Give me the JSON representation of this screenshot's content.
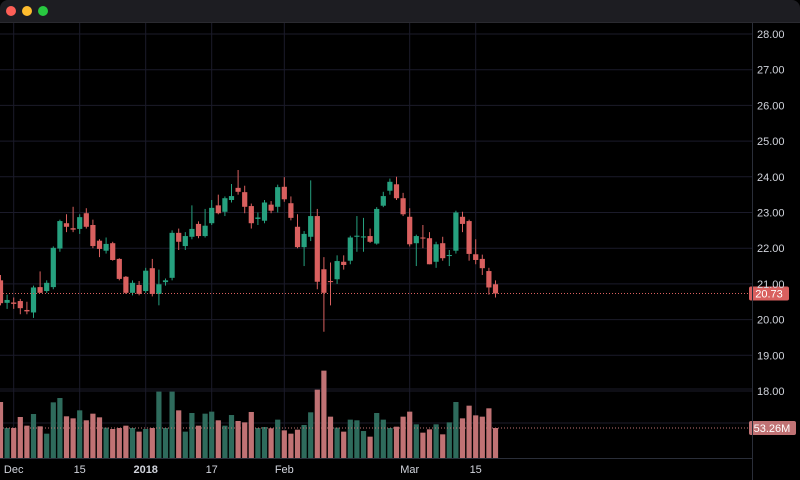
{
  "window": {
    "controls": [
      "close",
      "minimize",
      "maximize"
    ]
  },
  "colors": {
    "background": "#000000",
    "grid": "#1b1b2a",
    "up": "#26a17f",
    "down": "#d9605f",
    "volume_up": "#2e6b5c",
    "volume_down": "#c07274",
    "last_price_badge": "#d9605f",
    "volume_badge": "#c07274"
  },
  "chart_data": {
    "type": "candlestick",
    "price_axis": {
      "ticks": [
        "18.00",
        "19.00",
        "20.00",
        "21.00",
        "22.00",
        "23.00",
        "24.00",
        "25.00",
        "26.00",
        "27.00",
        "28.00"
      ],
      "range": [
        17.0,
        28.4
      ],
      "position": "right"
    },
    "time_axis": {
      "ticks": [
        {
          "label": "Dec",
          "date": "2017-12-01",
          "bold": false
        },
        {
          "label": "15",
          "date": "2017-12-15",
          "bold": false
        },
        {
          "label": "2018",
          "date": "2018-01-02",
          "bold": true
        },
        {
          "label": "17",
          "date": "2018-01-17",
          "bold": false
        },
        {
          "label": "Feb",
          "date": "2018-02-01",
          "bold": false
        },
        {
          "label": "Mar",
          "date": "2018-03-01",
          "bold": false
        },
        {
          "label": "15",
          "date": "2018-03-15",
          "bold": false
        }
      ]
    },
    "grid": true,
    "last_price": "20.73",
    "last_volume": "53.26M",
    "dates": [
      "2017-11-29",
      "2017-11-30",
      "2017-12-01",
      "2017-12-04",
      "2017-12-05",
      "2017-12-06",
      "2017-12-07",
      "2017-12-08",
      "2017-12-11",
      "2017-12-12",
      "2017-12-13",
      "2017-12-14",
      "2017-12-15",
      "2017-12-18",
      "2017-12-19",
      "2017-12-20",
      "2017-12-21",
      "2017-12-22",
      "2017-12-26",
      "2017-12-27",
      "2017-12-28",
      "2017-12-29",
      "2018-01-02",
      "2018-01-03",
      "2018-01-04",
      "2018-01-05",
      "2018-01-08",
      "2018-01-09",
      "2018-01-10",
      "2018-01-11",
      "2018-01-12",
      "2018-01-16",
      "2018-01-17",
      "2018-01-18",
      "2018-01-19",
      "2018-01-22",
      "2018-01-23",
      "2018-01-24",
      "2018-01-25",
      "2018-01-26",
      "2018-01-29",
      "2018-01-30",
      "2018-01-31",
      "2018-02-01",
      "2018-02-02",
      "2018-02-05",
      "2018-02-06",
      "2018-02-07",
      "2018-02-08",
      "2018-02-09",
      "2018-02-12",
      "2018-02-13",
      "2018-02-14",
      "2018-02-15",
      "2018-02-16",
      "2018-02-20",
      "2018-02-21",
      "2018-02-22",
      "2018-02-23",
      "2018-02-26",
      "2018-02-27",
      "2018-02-28",
      "2018-03-01",
      "2018-03-02",
      "2018-03-05",
      "2018-03-06",
      "2018-03-07",
      "2018-03-08",
      "2018-03-09",
      "2018-03-12",
      "2018-03-13",
      "2018-03-14",
      "2018-03-15",
      "2018-03-16",
      "2018-03-19",
      "2018-03-20"
    ],
    "ohlc": [
      [
        21.1,
        21.25,
        20.4,
        20.46
      ],
      [
        20.47,
        20.7,
        20.3,
        20.55
      ],
      [
        20.48,
        20.62,
        20.3,
        20.44
      ],
      [
        20.52,
        20.58,
        20.15,
        20.32
      ],
      [
        20.27,
        20.5,
        20.15,
        20.23
      ],
      [
        20.2,
        20.95,
        20.05,
        20.9
      ],
      [
        20.91,
        21.35,
        20.75,
        20.75
      ],
      [
        20.8,
        21.1,
        20.75,
        21.03
      ],
      [
        20.91,
        22.05,
        20.85,
        22.01
      ],
      [
        21.99,
        22.8,
        21.9,
        22.76
      ],
      [
        22.7,
        22.95,
        22.45,
        22.6
      ],
      [
        22.56,
        23.16,
        22.45,
        22.52
      ],
      [
        22.54,
        22.95,
        22.4,
        22.87
      ],
      [
        22.98,
        23.12,
        22.55,
        22.6
      ],
      [
        22.65,
        22.8,
        22.0,
        22.06
      ],
      [
        22.21,
        22.25,
        21.75,
        21.98
      ],
      [
        21.93,
        22.3,
        21.85,
        22.12
      ],
      [
        22.14,
        22.18,
        21.65,
        21.67
      ],
      [
        21.7,
        21.72,
        21.1,
        21.14
      ],
      [
        21.2,
        21.22,
        20.72,
        20.75
      ],
      [
        20.75,
        21.1,
        20.68,
        21.03
      ],
      [
        20.97,
        21.08,
        20.68,
        20.72
      ],
      [
        20.8,
        21.45,
        20.75,
        21.37
      ],
      [
        21.44,
        21.7,
        20.65,
        20.72
      ],
      [
        20.72,
        21.4,
        20.4,
        20.99
      ],
      [
        21.05,
        21.15,
        20.95,
        21.1
      ],
      [
        21.17,
        22.5,
        21.1,
        22.43
      ],
      [
        22.43,
        22.55,
        21.95,
        22.18
      ],
      [
        22.06,
        22.45,
        21.95,
        22.34
      ],
      [
        22.32,
        23.2,
        22.25,
        22.54
      ],
      [
        22.68,
        22.75,
        22.28,
        22.34
      ],
      [
        22.34,
        23.1,
        22.3,
        22.63
      ],
      [
        22.7,
        23.35,
        22.65,
        23.13
      ],
      [
        23.2,
        23.5,
        22.95,
        22.98
      ],
      [
        23.02,
        23.45,
        22.9,
        23.4
      ],
      [
        23.35,
        23.8,
        23.28,
        23.46
      ],
      [
        23.69,
        24.19,
        23.5,
        23.58
      ],
      [
        23.57,
        23.75,
        22.98,
        23.16
      ],
      [
        23.18,
        23.25,
        22.55,
        22.7
      ],
      [
        22.82,
        23.0,
        22.65,
        22.86
      ],
      [
        22.77,
        23.35,
        22.7,
        23.28
      ],
      [
        23.22,
        23.32,
        22.98,
        23.05
      ],
      [
        23.16,
        23.78,
        23.0,
        23.71
      ],
      [
        23.72,
        23.99,
        23.3,
        23.37
      ],
      [
        23.26,
        23.45,
        22.78,
        22.85
      ],
      [
        22.6,
        22.95,
        22.0,
        22.03
      ],
      [
        22.03,
        22.48,
        21.5,
        22.4
      ],
      [
        22.32,
        23.9,
        22.2,
        22.9
      ],
      [
        22.9,
        23.1,
        20.85,
        21.06
      ],
      [
        21.41,
        21.75,
        19.66,
        20.75
      ],
      [
        21.08,
        21.6,
        20.4,
        21.05
      ],
      [
        21.13,
        21.8,
        21.0,
        21.64
      ],
      [
        21.62,
        21.8,
        21.4,
        21.53
      ],
      [
        21.65,
        22.35,
        21.55,
        22.3
      ],
      [
        22.32,
        22.9,
        21.9,
        22.35
      ],
      [
        22.3,
        22.85,
        21.9,
        22.33
      ],
      [
        22.34,
        22.55,
        22.15,
        22.18
      ],
      [
        22.13,
        23.15,
        22.1,
        23.1
      ],
      [
        23.19,
        23.58,
        23.15,
        23.46
      ],
      [
        23.61,
        23.95,
        23.5,
        23.86
      ],
      [
        23.79,
        24.0,
        23.35,
        23.4
      ],
      [
        23.4,
        23.55,
        22.9,
        22.95
      ],
      [
        22.88,
        23.12,
        22.05,
        22.11
      ],
      [
        22.14,
        22.38,
        21.5,
        22.34
      ],
      [
        22.3,
        22.65,
        22.0,
        22.27
      ],
      [
        22.28,
        22.45,
        21.55,
        21.55
      ],
      [
        21.62,
        22.18,
        21.45,
        22.11
      ],
      [
        22.14,
        22.32,
        21.65,
        21.72
      ],
      [
        21.78,
        21.95,
        21.5,
        21.81
      ],
      [
        21.93,
        23.05,
        21.85,
        23.0
      ],
      [
        22.88,
        23.02,
        22.45,
        22.68
      ],
      [
        22.76,
        22.8,
        21.65,
        21.84
      ],
      [
        21.83,
        22.25,
        21.55,
        21.67
      ],
      [
        21.7,
        21.82,
        21.25,
        21.44
      ],
      [
        21.36,
        21.45,
        20.7,
        20.9
      ],
      [
        20.99,
        21.1,
        20.62,
        20.73
      ]
    ],
    "volume_millions": [
      99.4,
      53.3,
      53.3,
      72.8,
      57.4,
      78.1,
      56.2,
      43.2,
      98.8,
      106.5,
      74.0,
      70.4,
      84.6,
      66.9,
      78.7,
      72.2,
      53.9,
      51.5,
      53.3,
      57.4,
      53.3,
      46.8,
      51.5,
      53.3,
      117.8,
      53.3,
      117.8,
      84.6,
      46.8,
      79.9,
      57.4,
      78.7,
      82.3,
      66.9,
      57.4,
      76.3,
      65.7,
      63.3,
      81.7,
      53.3,
      55.0,
      52.7,
      68.1,
      49.1,
      43.2,
      50.3,
      58.6,
      81.1,
      121.3,
      155.1,
      73.4,
      53.9,
      46.8,
      68.1,
      66.9,
      47.9,
      37.9,
      79.9,
      68.1,
      53.3,
      55.6,
      73.4,
      82.3,
      59.8,
      45.0,
      50.9,
      59.8,
      42.0,
      63.3,
      99.4,
      70.4,
      92.9,
      75.7,
      73.4,
      88.2,
      53.26
    ]
  }
}
